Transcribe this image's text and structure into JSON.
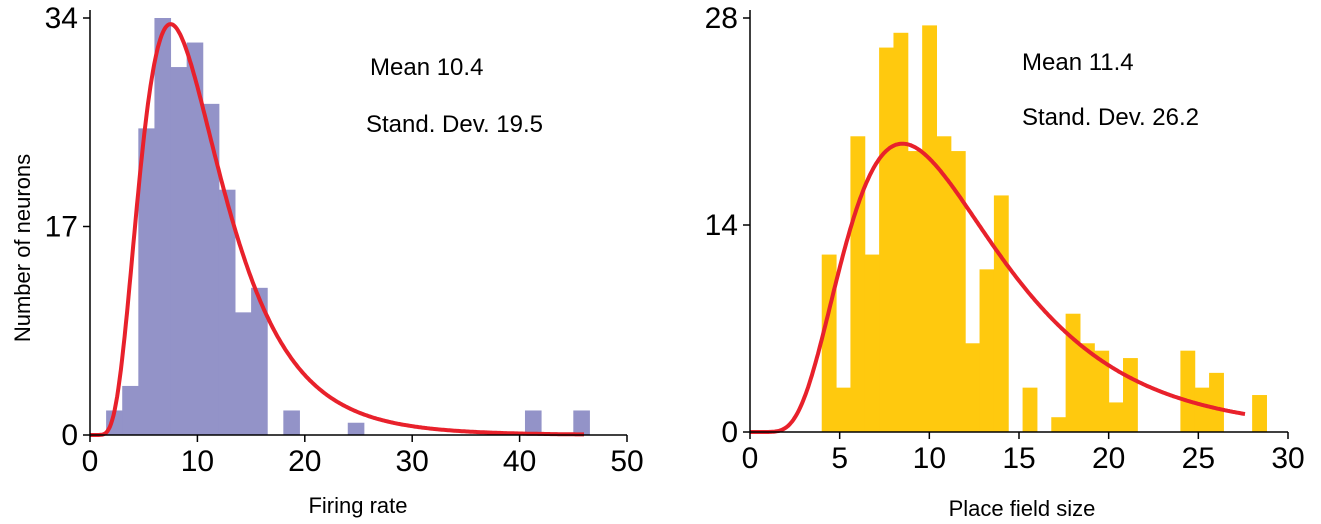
{
  "chart_data": [
    {
      "type": "bar",
      "xlabel": "Firing rate",
      "ylabel": "Number of neurons",
      "xlim": [
        0,
        50
      ],
      "ylim": [
        0,
        34
      ],
      "xticks": [
        0,
        10,
        20,
        30,
        40,
        50
      ],
      "yticks": [
        0,
        17,
        34
      ],
      "annotations": [
        "Mean 10.4",
        "Stand. Dev. 19.5"
      ],
      "colors": {
        "bars": "#9393c8",
        "curve": "#e8212b"
      },
      "bin_width": 1.5,
      "bins": [
        {
          "x": 1.5,
          "value": 2
        },
        {
          "x": 3.0,
          "value": 4
        },
        {
          "x": 4.5,
          "value": 25
        },
        {
          "x": 6.0,
          "value": 34
        },
        {
          "x": 7.5,
          "value": 30
        },
        {
          "x": 9.0,
          "value": 32
        },
        {
          "x": 10.5,
          "value": 27
        },
        {
          "x": 12.0,
          "value": 20
        },
        {
          "x": 13.5,
          "value": 10
        },
        {
          "x": 15.0,
          "value": 12
        },
        {
          "x": 16.5,
          "value": 0
        },
        {
          "x": 18.0,
          "value": 2
        },
        {
          "x": 24.0,
          "value": 1
        },
        {
          "x": 40.5,
          "value": 2
        },
        {
          "x": 45.0,
          "value": 2
        }
      ],
      "curve": {
        "type": "lognormal",
        "peak_x": 7.5,
        "peak_y": 33.5
      }
    },
    {
      "type": "bar",
      "xlabel": "Place field size",
      "ylabel": "",
      "xlim": [
        0,
        30
      ],
      "ylim": [
        0,
        28
      ],
      "xticks": [
        0,
        5,
        10,
        15,
        20,
        25,
        30
      ],
      "yticks": [
        0,
        14,
        28
      ],
      "annotations": [
        "Mean 11.4",
        "Stand. Dev. 26.2"
      ],
      "colors": {
        "bars": "#ffc90e",
        "curve": "#e8212b"
      },
      "bin_width": 0.8,
      "bins": [
        {
          "x": 4.0,
          "value": 12
        },
        {
          "x": 4.8,
          "value": 3
        },
        {
          "x": 5.6,
          "value": 20
        },
        {
          "x": 6.4,
          "value": 12
        },
        {
          "x": 7.2,
          "value": 26
        },
        {
          "x": 8.0,
          "value": 27
        },
        {
          "x": 8.8,
          "value": 19
        },
        {
          "x": 9.6,
          "value": 27.5
        },
        {
          "x": 10.4,
          "value": 20
        },
        {
          "x": 11.2,
          "value": 19
        },
        {
          "x": 12.0,
          "value": 6
        },
        {
          "x": 12.8,
          "value": 11
        },
        {
          "x": 13.6,
          "value": 16
        },
        {
          "x": 15.2,
          "value": 3
        },
        {
          "x": 16.8,
          "value": 1
        },
        {
          "x": 17.6,
          "value": 8
        },
        {
          "x": 18.4,
          "value": 6
        },
        {
          "x": 19.2,
          "value": 5.5
        },
        {
          "x": 20.0,
          "value": 2
        },
        {
          "x": 20.8,
          "value": 5
        },
        {
          "x": 24.0,
          "value": 5.5
        },
        {
          "x": 24.8,
          "value": 3
        },
        {
          "x": 25.6,
          "value": 4
        },
        {
          "x": 28.0,
          "value": 2.5
        }
      ],
      "curve": {
        "type": "lognormal",
        "peak_x": 8.5,
        "peak_y": 19.5
      }
    }
  ]
}
